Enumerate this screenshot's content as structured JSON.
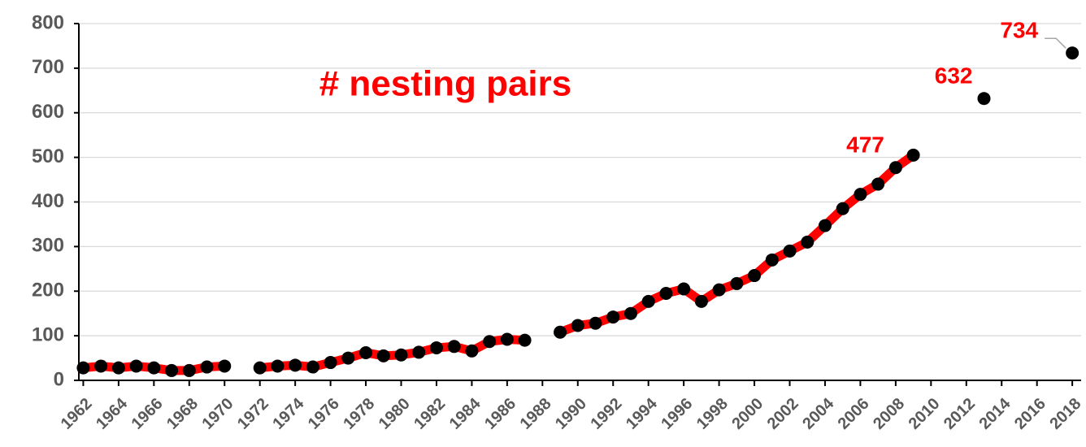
{
  "chart_data": {
    "type": "line",
    "title": "# nesting pairs",
    "x": [
      1962,
      1963,
      1964,
      1965,
      1966,
      1967,
      1968,
      1969,
      1970,
      1971,
      1972,
      1973,
      1974,
      1975,
      1976,
      1977,
      1978,
      1979,
      1980,
      1981,
      1982,
      1983,
      1984,
      1985,
      1986,
      1987,
      1988,
      1989,
      1990,
      1991,
      1992,
      1993,
      1994,
      1995,
      1996,
      1997,
      1998,
      1999,
      2000,
      2001,
      2002,
      2003,
      2004,
      2005,
      2006,
      2007,
      2008,
      2009,
      2011,
      2013,
      2016,
      2018
    ],
    "series": [
      {
        "name": "nesting pairs",
        "color": "#ff0000",
        "marker_color": "#000000",
        "values": [
          28,
          32,
          28,
          32,
          28,
          22,
          22,
          30,
          32,
          null,
          28,
          32,
          34,
          30,
          40,
          50,
          62,
          55,
          57,
          63,
          73,
          76,
          66,
          87,
          92,
          90,
          null,
          108,
          123,
          128,
          142,
          150,
          177,
          195,
          205,
          177,
          203,
          217,
          235,
          270,
          290,
          310,
          347,
          385,
          417,
          440,
          477,
          505,
          null,
          632,
          null,
          734
        ],
        "value_labels": [
          null,
          null,
          null,
          null,
          null,
          null,
          null,
          null,
          null,
          null,
          null,
          null,
          null,
          null,
          null,
          null,
          null,
          null,
          null,
          null,
          null,
          null,
          null,
          null,
          null,
          null,
          null,
          null,
          null,
          null,
          null,
          null,
          null,
          null,
          null,
          null,
          null,
          null,
          null,
          null,
          null,
          null,
          null,
          null,
          null,
          null,
          "477",
          null,
          null,
          "632",
          null,
          "734"
        ]
      }
    ],
    "xlim": [
      1961.75,
      2018.5
    ],
    "xticks": [
      1962,
      1964,
      1966,
      1968,
      1970,
      1972,
      1974,
      1976,
      1978,
      1980,
      1982,
      1984,
      1986,
      1988,
      1990,
      1992,
      1994,
      1996,
      1998,
      2000,
      2002,
      2004,
      2006,
      2008,
      2010,
      2012,
      2014,
      2016,
      2018
    ],
    "ylim": [
      0,
      800
    ],
    "yticks": [
      0,
      100,
      200,
      300,
      400,
      500,
      600,
      700,
      800
    ],
    "grid": true
  }
}
